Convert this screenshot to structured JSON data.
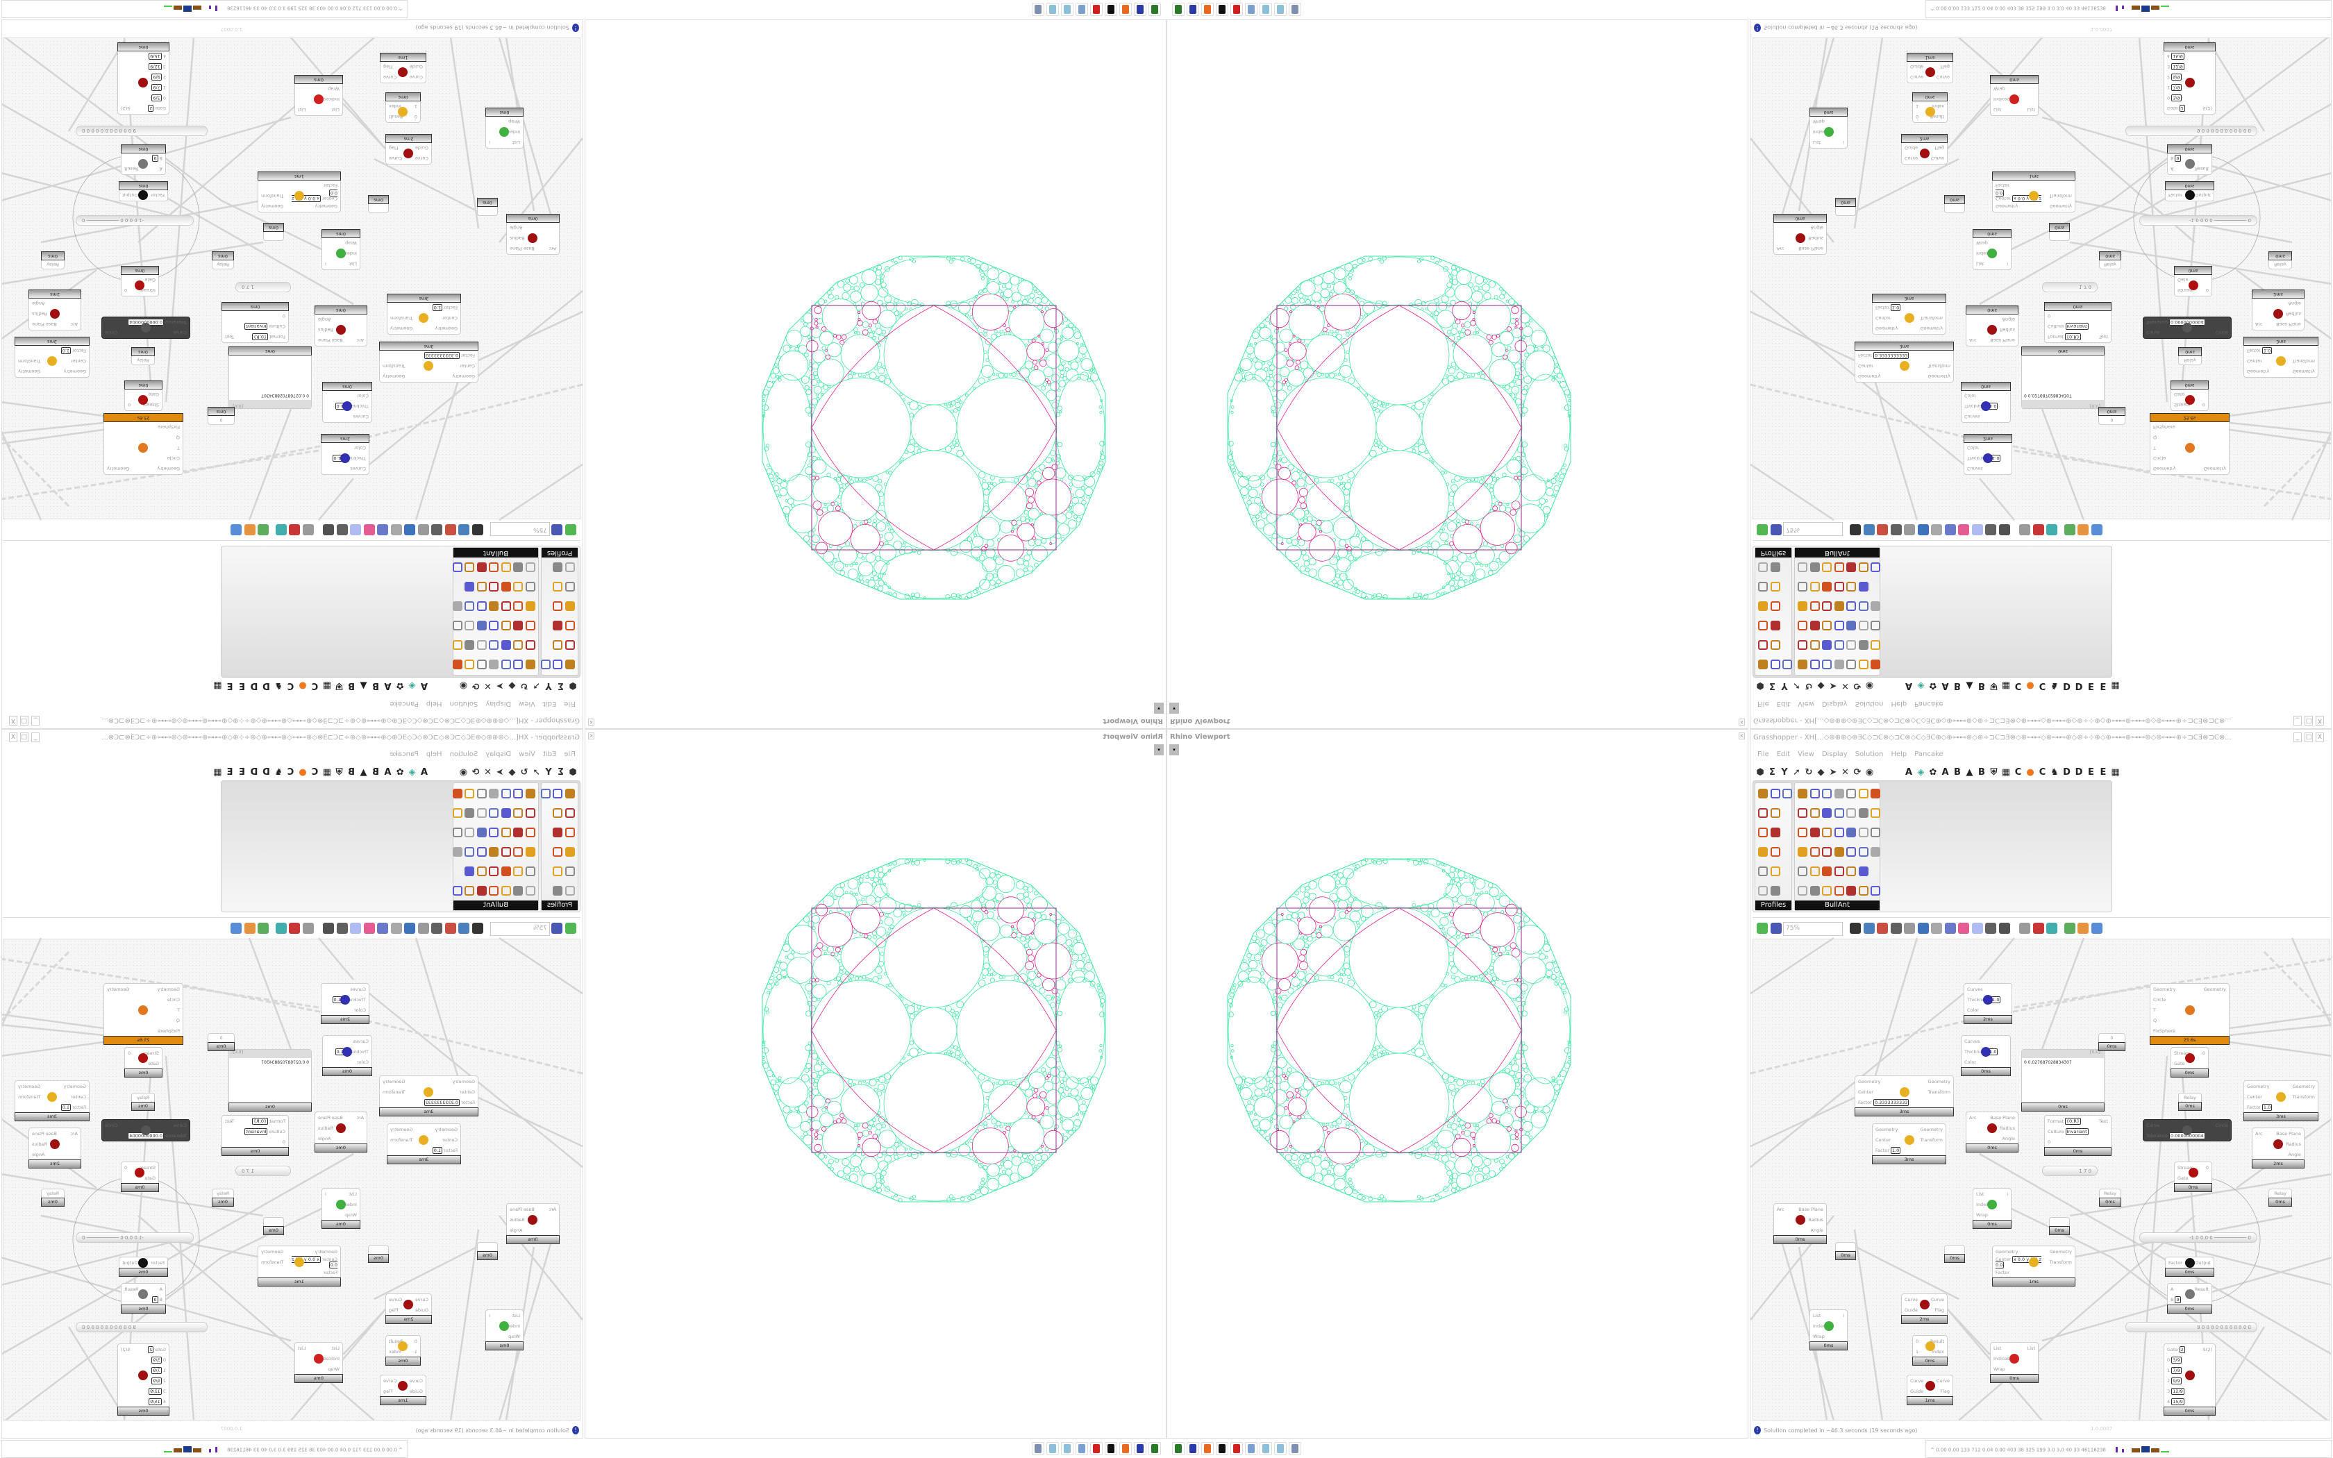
{
  "rhino_viewport": {
    "title": "Rhino Viewport",
    "close_label": "x",
    "dropdown_label": "▾",
    "geometry_colors": {
      "circles": "#3de8a0",
      "square": "#9a2a8a",
      "arcs": "#e0208f"
    }
  },
  "grasshopper": {
    "title": "Grasshopper - XH[...◇⊕⊕⊕◇⊕ƎC◇⊐C⊗◇⊐C⊗◇C◇ƎC⊕◇⊕⊶⊷⊕◇⊕÷⊐C⊐Ǝ⊗◇⊕⊶⊷◇⊕⊶⊷⊕◇⊕÷⊹⊕◇⊕⊶⊷⊕⊶⊷⊕◇⊕⊶⊷⊕÷⊐CƎ⊗⊐C⊗...",
    "window_buttons": [
      "_",
      "□",
      "X"
    ],
    "menu": [
      "File",
      "Edit",
      "View",
      "Display",
      "Solution",
      "Help",
      "Pancake"
    ],
    "tab_icons_left": [
      {
        "name": "params-icon",
        "glyph": "⬢"
      },
      {
        "name": "maths-icon",
        "glyph": "Σ"
      },
      {
        "name": "sets-icon",
        "glyph": "Y"
      },
      {
        "name": "vector-icon",
        "glyph": "➚"
      },
      {
        "name": "curve-icon",
        "glyph": "↻"
      },
      {
        "name": "surface-icon",
        "glyph": "◆"
      },
      {
        "name": "mesh-icon",
        "glyph": "➤"
      },
      {
        "name": "intersect-icon",
        "glyph": "✕"
      },
      {
        "name": "transform-icon",
        "glyph": "⟳"
      },
      {
        "name": "display-icon",
        "glyph": "◉"
      }
    ],
    "tab_icons_right": [
      {
        "name": "tab-a-icon",
        "glyph": "A"
      },
      {
        "name": "leaf-icon",
        "glyph": "◈"
      },
      {
        "name": "puzzle-icon",
        "glyph": "✿"
      },
      {
        "name": "tab-a2-icon",
        "glyph": "A"
      },
      {
        "name": "tab-b-icon",
        "glyph": "B"
      },
      {
        "name": "mountain-icon",
        "glyph": "▲"
      },
      {
        "name": "tab-b2-icon",
        "glyph": "B"
      },
      {
        "name": "shield-icon",
        "glyph": "⛨"
      },
      {
        "name": "grid-icon",
        "glyph": "▦"
      },
      {
        "name": "tab-c-icon",
        "glyph": "C"
      },
      {
        "name": "orange-dot-icon",
        "glyph": "●"
      },
      {
        "name": "tab-c2-icon",
        "glyph": "C"
      },
      {
        "name": "rooster-icon",
        "glyph": "♞"
      },
      {
        "name": "tab-d-icon",
        "glyph": "D"
      },
      {
        "name": "tab-d2-icon",
        "glyph": "D"
      },
      {
        "name": "tab-e-icon",
        "glyph": "E"
      },
      {
        "name": "tab-e2-icon",
        "glyph": "E"
      },
      {
        "name": "more-icon",
        "glyph": "▦"
      }
    ],
    "panels": [
      {
        "label": "Profiles"
      },
      {
        "label": "BullAnt"
      }
    ],
    "canvas_toolbar": {
      "zoom_value": "75%",
      "icons": [
        "open-file-icon",
        "save-icon",
        "zoom-extents-icon",
        "preview-eye-icon",
        "sketch-icon",
        "bake-icon",
        "gh-icon-icon",
        "gha-icon",
        "cluster-icon",
        "search-icon",
        "package-icon",
        "bulb-icon",
        "wires-icon",
        "bubble-icon",
        "ring-icon",
        "red-shape-icon",
        "teal-shape-icon",
        "green-shape-icon",
        "sphere-icon",
        "blue-sphere-icon"
      ]
    },
    "canvas": {
      "nodes": [
        {
          "kind": "component",
          "icon": "custom-preview-icon",
          "inputs": [
            {
              "l": "Curves"
            },
            {
              "l": "Thickness",
              "v": "1.0"
            },
            {
              "l": "Color"
            }
          ],
          "outputs": [],
          "time": "2ms"
        },
        {
          "kind": "component",
          "icon": "custom-preview-icon",
          "inputs": [
            {
              "l": "Curves"
            },
            {
              "l": "Thickness",
              "v": "1.0"
            },
            {
              "l": "Color"
            }
          ],
          "outputs": [],
          "time": "0ms"
        },
        {
          "kind": "component",
          "icon": "scale-icon",
          "inputs": [
            {
              "l": "Geometry"
            },
            {
              "l": "Center"
            },
            {
              "l": "Factor",
              "v": "0.3333333333"
            }
          ],
          "outputs": [
            {
              "l": "Geometry"
            },
            {
              "l": "Transform"
            }
          ],
          "time": "3ms"
        },
        {
          "kind": "component",
          "icon": "scale-icon",
          "inputs": [
            {
              "l": "Geometry"
            },
            {
              "l": "Center"
            },
            {
              "l": "Factor",
              "v": "1.0"
            }
          ],
          "outputs": [
            {
              "l": "Geometry"
            },
            {
              "l": "Transform"
            }
          ],
          "time": "3ms"
        },
        {
          "kind": "component",
          "icon": "deconstruct-arc-icon",
          "inputs": [
            {
              "l": "Arc"
            }
          ],
          "outputs": [
            {
              "l": "Base Plane"
            },
            {
              "l": "Radius"
            },
            {
              "l": "Angle"
            }
          ],
          "time": "0ms"
        },
        {
          "kind": "panel",
          "text": "0 0.027687028834307",
          "path": "{0;0}",
          "time": "0ms"
        },
        {
          "kind": "component",
          "icon": "kangaroo-icon",
          "inputs": [
            {
              "l": "Geometry"
            },
            {
              "l": "Circle"
            },
            {
              "l": "T"
            },
            {
              "l": "Q"
            },
            {
              "l": "FixSphere"
            }
          ],
          "outputs": [
            {
              "l": "Geometry"
            }
          ],
          "time": "25.6s",
          "highlight": "#e08a10"
        },
        {
          "kind": "param",
          "label": "0",
          "time": "0ms"
        },
        {
          "kind": "component",
          "icon": "stream-gate-icon",
          "inputs": [
            {
              "l": "Stream"
            },
            {
              "l": "Gate"
            }
          ],
          "outputs": [
            {
              "l": "0"
            }
          ],
          "time": "0ms"
        },
        {
          "kind": "param",
          "label": "Relay",
          "time": "0ms"
        },
        {
          "kind": "component",
          "icon": "",
          "inputs": [
            {
              "l": "Format",
              "v": "{0;R}"
            },
            {
              "l": "Culture",
              "v": "Invariant"
            },
            {
              "l": "0"
            }
          ],
          "outputs": [
            {
              "l": "Text"
            }
          ],
          "time": "0ms"
        },
        {
          "kind": "disabled",
          "icon": "circle-fit-icon",
          "inputs": [
            {
              "l": "Curve"
            },
            {
              "l": "Tolerance",
              "v": "0.0000000004"
            }
          ],
          "outputs": [
            {
              "l": "Circle"
            }
          ]
        },
        {
          "kind": "component",
          "icon": "scale-icon",
          "inputs": [
            {
              "l": "Geometry"
            },
            {
              "l": "Center"
            },
            {
              "l": "Factor",
              "v": "1.0"
            }
          ],
          "outputs": [
            {
              "l": "Geometry"
            },
            {
              "l": "Transform"
            }
          ],
          "time": "3ms"
        },
        {
          "kind": "component",
          "icon": "deconstruct-arc-icon",
          "inputs": [
            {
              "l": "Arc"
            }
          ],
          "outputs": [
            {
              "l": "Base Plane"
            },
            {
              "l": "Radius"
            },
            {
              "l": "Angle"
            }
          ],
          "time": "2ms"
        },
        {
          "kind": "slider",
          "text": "1 7 0"
        },
        {
          "kind": "component",
          "icon": "stream-gate-icon",
          "inputs": [
            {
              "l": "Stream"
            },
            {
              "l": "Gate"
            }
          ],
          "outputs": [
            {
              "l": "0"
            }
          ],
          "time": "0ms"
        },
        {
          "kind": "component",
          "icon": "deconstruct-arc-icon",
          "inputs": [
            {
              "l": "Arc"
            }
          ],
          "outputs": [
            {
              "l": "Base Plane"
            },
            {
              "l": "Radius"
            },
            {
              "l": "Angle"
            }
          ],
          "time": "0ms"
        },
        {
          "kind": "param",
          "label": "",
          "time": "0ms"
        },
        {
          "kind": "component",
          "icon": "list-item-icon",
          "inputs": [
            {
              "l": "List"
            },
            {
              "l": "Index"
            },
            {
              "l": "Wrap"
            }
          ],
          "outputs": [
            {
              "l": "i"
            }
          ],
          "time": "0ms"
        },
        {
          "kind": "param",
          "label": "",
          "time": "0ms"
        },
        {
          "kind": "component",
          "icon": "scale-icon",
          "inputs": [
            {
              "l": "Geometry"
            },
            {
              "l": "Center",
              "v": "x 0.0 y 0.0 z 0.0"
            },
            {
              "l": "Factor"
            }
          ],
          "outputs": [
            {
              "l": "Geometry"
            },
            {
              "l": "Transform"
            }
          ],
          "time": "1ms"
        },
        {
          "kind": "component",
          "icon": "flip-curve-icon",
          "inputs": [
            {
              "l": "Curve"
            },
            {
              "l": "Guide"
            }
          ],
          "outputs": [
            {
              "l": "Curve"
            },
            {
              "l": "Flag"
            }
          ],
          "time": "2ms"
        },
        {
          "kind": "component",
          "icon": "list-item-icon",
          "inputs": [
            {
              "l": "List"
            },
            {
              "l": "Index",
              "v": "8"
            },
            {
              "l": "Wrap"
            }
          ],
          "outputs": [
            {
              "l": "i"
            }
          ],
          "time": "0ms"
        },
        {
          "kind": "component",
          "icon": "pick-icon",
          "inputs": [
            {
              "l": "0"
            },
            {
              "l": "1"
            }
          ],
          "outputs": [
            {
              "l": "Result"
            },
            {
              "l": "Index"
            }
          ],
          "time": "0ms"
        },
        {
          "kind": "component",
          "icon": "cull-index-icon",
          "inputs": [
            {
              "l": "List"
            },
            {
              "l": "Indices"
            },
            {
              "l": "Wrap"
            }
          ],
          "outputs": [
            {
              "l": "List"
            }
          ],
          "time": "0ms"
        },
        {
          "kind": "component",
          "icon": "flip-curve-icon",
          "inputs": [
            {
              "l": "Curve"
            },
            {
              "l": "Guide"
            }
          ],
          "outputs": [
            {
              "l": "Curve"
            },
            {
              "l": "Flag"
            }
          ],
          "time": "1ms"
        },
        {
          "kind": "param",
          "label": "Relay",
          "time": "0ms"
        },
        {
          "kind": "param",
          "label": "Relay",
          "time": "0ms"
        },
        {
          "kind": "param",
          "label": "",
          "time": "0ms"
        },
        {
          "kind": "slider",
          "text": "-1.0  0.0  0 ─────────── 0"
        },
        {
          "kind": "component",
          "icon": "pi-icon",
          "inputs": [
            {
              "l": "Factor"
            }
          ],
          "outputs": [
            {
              "l": "Output"
            }
          ],
          "time": "0ms"
        },
        {
          "kind": "component",
          "icon": "division-icon",
          "inputs": [
            {
              "l": "A"
            },
            {
              "l": "B",
              "v": "9"
            }
          ],
          "outputs": [
            {
              "l": "Result"
            }
          ],
          "time": "0ms"
        },
        {
          "kind": "slider",
          "text": "9 0 0 0 0 0 0 0 0 0 0 0"
        },
        {
          "kind": "component",
          "icon": "stream-filter-icon",
          "inputs": [
            {
              "l": "Gate",
              "v": "2"
            },
            {
              "l": "0",
              "v": "3/9"
            },
            {
              "l": "1",
              "v": "7/9"
            },
            {
              "l": "2",
              "v": "9/9"
            },
            {
              "l": "3",
              "v": "12/9"
            },
            {
              "l": "4",
              "v": "15/9"
            }
          ],
          "outputs": [
            {
              "l": "S(2)"
            }
          ],
          "time": "0ms"
        }
      ]
    },
    "status": {
      "message": "Solution completed in ~46.3 seconds (19 seconds ago)",
      "version": "1.0.0007"
    }
  },
  "performance_meter": "^  0.00 0.00 133 712 0.04 0.00 403  38  325 199  3.0  3.0  40  33  46116238",
  "taskbar": [
    {
      "name": "terminal-icon",
      "color": "#2a7a2a"
    },
    {
      "name": "floppy-64-icon",
      "color": "#2a3aa8"
    },
    {
      "name": "firefox-icon",
      "color": "#e86a20"
    },
    {
      "name": "inkscape-icon",
      "color": "#111111"
    },
    {
      "name": "red-app-icon",
      "color": "#d02020"
    },
    {
      "name": "calculator-icon",
      "color": "#7aa0d0"
    },
    {
      "name": "notepad-icon",
      "color": "#8cc0d8"
    },
    {
      "name": "notepad2-icon",
      "color": "#8cc0d8"
    },
    {
      "name": "document-icon",
      "color": "#8090b0"
    }
  ]
}
